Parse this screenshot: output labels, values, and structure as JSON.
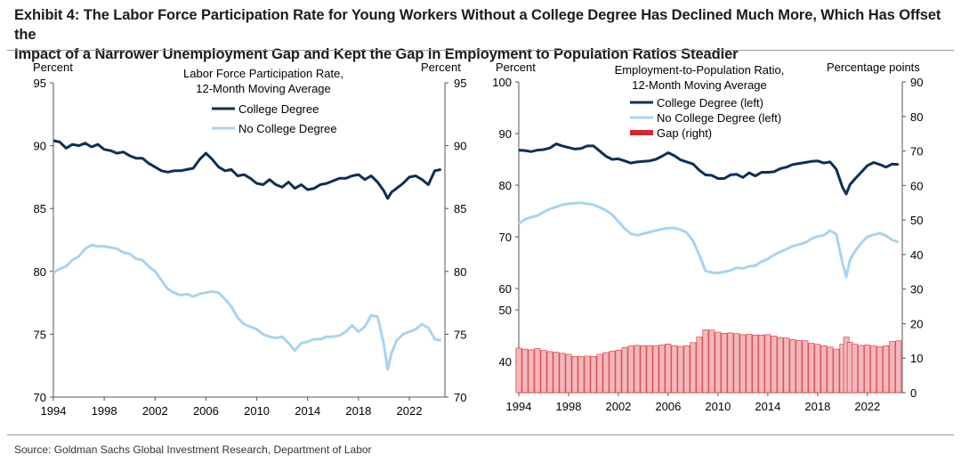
{
  "title": {
    "line1": "Exhibit 4: The Labor Force Participation Rate for Young Workers Without a College Degree Has Declined Much More, Which Has Offset the",
    "line2": "Impact of a Narrower Unemployment Gap and Kept the Gap in Employment to Population Ratios Steadier"
  },
  "source": "Source: Goldman Sachs Global Investment Research, Department of Labor",
  "colors": {
    "college": "#0d2f57",
    "no_college": "#a8d4ef",
    "gap": "#d9262e",
    "gap_fill": "#f1b8bb",
    "axis": "#555555"
  },
  "chart_data": [
    {
      "type": "line",
      "title": "Labor Force Participation Rate, 12-Month Moving Average",
      "title_line1": "Labor Force Participation Rate,",
      "title_line2": "12-Month Moving Average",
      "ylabel": "Percent",
      "ylabel_right": "Percent",
      "ylim": [
        70,
        95
      ],
      "yticks": [
        70,
        75,
        80,
        85,
        90,
        95
      ],
      "xlim": [
        1994,
        2024.8
      ],
      "xticks": [
        1994,
        1998,
        2002,
        2006,
        2010,
        2014,
        2018,
        2022
      ],
      "legend_position": "top-center",
      "series": [
        {
          "name": "College Degree",
          "color": "#0d2f57",
          "x": [
            1994,
            1994.5,
            1995,
            1995.5,
            1996,
            1996.5,
            1997,
            1997.5,
            1998,
            1998.5,
            1999,
            1999.5,
            2000,
            2000.5,
            2001,
            2001.5,
            2002,
            2002.5,
            2003,
            2003.5,
            2004,
            2004.5,
            2005,
            2005.5,
            2006,
            2006.5,
            2007,
            2007.5,
            2008,
            2008.5,
            2009,
            2009.5,
            2010,
            2010.5,
            2011,
            2011.5,
            2012,
            2012.5,
            2013,
            2013.5,
            2014,
            2014.5,
            2015,
            2015.5,
            2016,
            2016.5,
            2017,
            2017.5,
            2018,
            2018.5,
            2019,
            2019.5,
            2020,
            2020.3,
            2020.6,
            2021,
            2021.5,
            2022,
            2022.5,
            2023,
            2023.5,
            2024,
            2024.5
          ],
          "y": [
            90.4,
            90.3,
            89.8,
            90.1,
            90.0,
            90.2,
            89.9,
            90.1,
            89.7,
            89.6,
            89.4,
            89.5,
            89.2,
            89.0,
            89.0,
            88.6,
            88.3,
            88.0,
            87.9,
            88.0,
            88.0,
            88.1,
            88.2,
            88.9,
            89.4,
            88.9,
            88.3,
            88.0,
            88.1,
            87.6,
            87.7,
            87.4,
            87.0,
            86.9,
            87.3,
            86.9,
            86.7,
            87.1,
            86.6,
            86.9,
            86.5,
            86.6,
            86.9,
            87.0,
            87.2,
            87.4,
            87.4,
            87.6,
            87.7,
            87.3,
            87.6,
            87.1,
            86.4,
            85.8,
            86.3,
            86.6,
            87.0,
            87.5,
            87.6,
            87.3,
            86.9,
            88.0,
            88.1
          ]
        },
        {
          "name": "No College Degree",
          "color": "#a8d4ef",
          "x": [
            1994,
            1994.5,
            1995,
            1995.5,
            1996,
            1996.5,
            1997,
            1997.5,
            1998,
            1998.5,
            1999,
            1999.5,
            2000,
            2000.5,
            2001,
            2001.5,
            2002,
            2002.5,
            2003,
            2003.5,
            2004,
            2004.5,
            2005,
            2005.5,
            2006,
            2006.5,
            2007,
            2007.5,
            2008,
            2008.5,
            2009,
            2009.5,
            2010,
            2010.5,
            2011,
            2011.5,
            2012,
            2012.5,
            2013,
            2013.5,
            2014,
            2014.5,
            2015,
            2015.5,
            2016,
            2016.5,
            2017,
            2017.5,
            2018,
            2018.5,
            2019,
            2019.5,
            2020,
            2020.3,
            2020.6,
            2021,
            2021.5,
            2022,
            2022.5,
            2023,
            2023.5,
            2024,
            2024.5
          ],
          "y": [
            79.9,
            80.2,
            80.4,
            80.9,
            81.2,
            81.8,
            82.1,
            82.0,
            82.0,
            81.9,
            81.8,
            81.5,
            81.4,
            81.0,
            80.9,
            80.4,
            80.0,
            79.3,
            78.6,
            78.3,
            78.1,
            78.2,
            78.0,
            78.2,
            78.3,
            78.4,
            78.3,
            77.8,
            77.2,
            76.3,
            75.8,
            75.6,
            75.4,
            75.0,
            74.8,
            74.7,
            74.8,
            74.3,
            73.7,
            74.3,
            74.4,
            74.6,
            74.6,
            74.8,
            74.8,
            74.9,
            75.2,
            75.7,
            75.2,
            75.6,
            76.5,
            76.4,
            74.2,
            72.2,
            73.5,
            74.5,
            75.0,
            75.2,
            75.4,
            75.8,
            75.5,
            74.6,
            74.5
          ]
        }
      ]
    },
    {
      "type": "line",
      "title": "Employment-to-Population Ratio, 12-Month Moving Average",
      "title_line1": "Employment-to-Population Ratio,",
      "title_line2": "12-Month Moving Average",
      "ylabel": "Percent",
      "ylabel_right": "Percentage points",
      "left_ticks_upper": [
        60,
        70,
        80,
        90,
        100
      ],
      "left_ticks_lower": [
        40,
        50
      ],
      "ylim_left": [
        60,
        100
      ],
      "ylim_right": [
        0,
        90
      ],
      "yticks_right": [
        0,
        10,
        20,
        30,
        40,
        50,
        60,
        70,
        80,
        90
      ],
      "xlim": [
        1994,
        2024.8
      ],
      "xticks": [
        1994,
        1998,
        2002,
        2006,
        2010,
        2014,
        2018,
        2022
      ],
      "legend_position": "top-center",
      "series": [
        {
          "name": "College Degree (left)",
          "color": "#0d2f57",
          "axis": "left",
          "x": [
            1994,
            1994.5,
            1995,
            1995.5,
            1996,
            1996.5,
            1997,
            1997.5,
            1998,
            1998.5,
            1999,
            1999.5,
            2000,
            2000.5,
            2001,
            2001.5,
            2002,
            2002.5,
            2003,
            2003.5,
            2004,
            2004.5,
            2005,
            2005.5,
            2006,
            2006.5,
            2007,
            2007.5,
            2008,
            2008.5,
            2009,
            2009.5,
            2010,
            2010.5,
            2011,
            2011.5,
            2012,
            2012.5,
            2013,
            2013.5,
            2014,
            2014.5,
            2015,
            2015.5,
            2016,
            2016.5,
            2017,
            2017.5,
            2018,
            2018.5,
            2019,
            2019.5,
            2020,
            2020.3,
            2020.6,
            2021,
            2021.5,
            2022,
            2022.5,
            2023,
            2023.5,
            2024,
            2024.5
          ],
          "y": [
            86.8,
            86.7,
            86.5,
            86.8,
            86.9,
            87.2,
            88.0,
            87.6,
            87.3,
            87.0,
            87.1,
            87.6,
            87.6,
            86.6,
            85.6,
            85.0,
            85.1,
            84.7,
            84.3,
            84.5,
            84.6,
            84.7,
            85.0,
            85.6,
            86.3,
            85.7,
            84.9,
            84.5,
            84.1,
            82.9,
            82.0,
            81.9,
            81.3,
            81.3,
            82.0,
            82.1,
            81.5,
            82.4,
            81.8,
            82.5,
            82.5,
            82.6,
            83.2,
            83.5,
            84.0,
            84.2,
            84.4,
            84.6,
            84.7,
            84.3,
            84.5,
            83.1,
            79.6,
            78.3,
            80.1,
            81.2,
            82.5,
            83.8,
            84.4,
            84.0,
            83.5,
            84.1,
            84.0
          ]
        },
        {
          "name": "No College Degree (left)",
          "color": "#a8d4ef",
          "axis": "left",
          "x": [
            1994,
            1994.5,
            1995,
            1995.5,
            1996,
            1996.5,
            1997,
            1997.5,
            1998,
            1998.5,
            1999,
            1999.5,
            2000,
            2000.5,
            2001,
            2001.5,
            2002,
            2002.5,
            2003,
            2003.5,
            2004,
            2004.5,
            2005,
            2005.5,
            2006,
            2006.5,
            2007,
            2007.5,
            2008,
            2008.5,
            2009,
            2009.5,
            2010,
            2010.5,
            2011,
            2011.5,
            2012,
            2012.5,
            2013,
            2013.5,
            2014,
            2014.5,
            2015,
            2015.5,
            2016,
            2016.5,
            2017,
            2017.5,
            2018,
            2018.5,
            2019,
            2019.5,
            2020,
            2020.3,
            2020.6,
            2021,
            2021.5,
            2022,
            2022.5,
            2023,
            2023.5,
            2024,
            2024.5
          ],
          "y": [
            72.5,
            73.4,
            73.8,
            74.1,
            74.8,
            75.4,
            75.8,
            76.2,
            76.4,
            76.5,
            76.6,
            76.4,
            76.2,
            75.7,
            75.1,
            74.3,
            73.0,
            71.6,
            70.6,
            70.3,
            70.6,
            70.9,
            71.2,
            71.5,
            71.7,
            71.7,
            71.4,
            70.8,
            69.2,
            66.5,
            63.4,
            63.1,
            63.0,
            63.2,
            63.5,
            64.0,
            63.9,
            64.3,
            64.4,
            65.2,
            65.7,
            66.5,
            67.1,
            67.6,
            68.2,
            68.5,
            68.9,
            69.6,
            70.1,
            70.3,
            71.2,
            70.5,
            65.0,
            62.2,
            65.5,
            67.2,
            68.8,
            70.0,
            70.4,
            70.7,
            70.2,
            69.4,
            69.0
          ]
        },
        {
          "name": "Gap (right)",
          "color": "#d9262e",
          "axis": "right",
          "kind": "bar",
          "x": [
            1994,
            1994.5,
            1995,
            1995.5,
            1996,
            1996.5,
            1997,
            1997.5,
            1998,
            1998.5,
            1999,
            1999.5,
            2000,
            2000.5,
            2001,
            2001.5,
            2002,
            2002.5,
            2003,
            2003.5,
            2004,
            2004.5,
            2005,
            2005.5,
            2006,
            2006.5,
            2007,
            2007.5,
            2008,
            2008.5,
            2009,
            2009.5,
            2010,
            2010.5,
            2011,
            2011.5,
            2012,
            2012.5,
            2013,
            2013.5,
            2014,
            2014.5,
            2015,
            2015.5,
            2016,
            2016.5,
            2017,
            2017.5,
            2018,
            2018.5,
            2019,
            2019.5,
            2020,
            2020.3,
            2020.6,
            2021,
            2021.5,
            2022,
            2022.5,
            2023,
            2023.5,
            2024,
            2024.5
          ],
          "y": [
            12.9,
            12.6,
            12.4,
            12.8,
            12.2,
            11.9,
            11.7,
            11.4,
            11.1,
            10.5,
            10.4,
            10.6,
            10.5,
            11.1,
            11.6,
            12.0,
            12.3,
            13.1,
            13.5,
            13.7,
            13.6,
            13.6,
            13.5,
            13.8,
            14.1,
            13.6,
            13.4,
            13.6,
            14.5,
            16.1,
            18.2,
            18.1,
            17.5,
            17.2,
            17.3,
            17.1,
            16.8,
            16.9,
            16.7,
            16.7,
            16.8,
            16.4,
            16.0,
            15.8,
            15.4,
            15.1,
            15.0,
            14.3,
            14.0,
            13.6,
            13.2,
            12.6,
            14.0,
            16.1,
            14.6,
            14.0,
            13.7,
            13.8,
            13.5,
            13.3,
            13.6,
            14.8,
            15.0
          ]
        }
      ]
    }
  ]
}
